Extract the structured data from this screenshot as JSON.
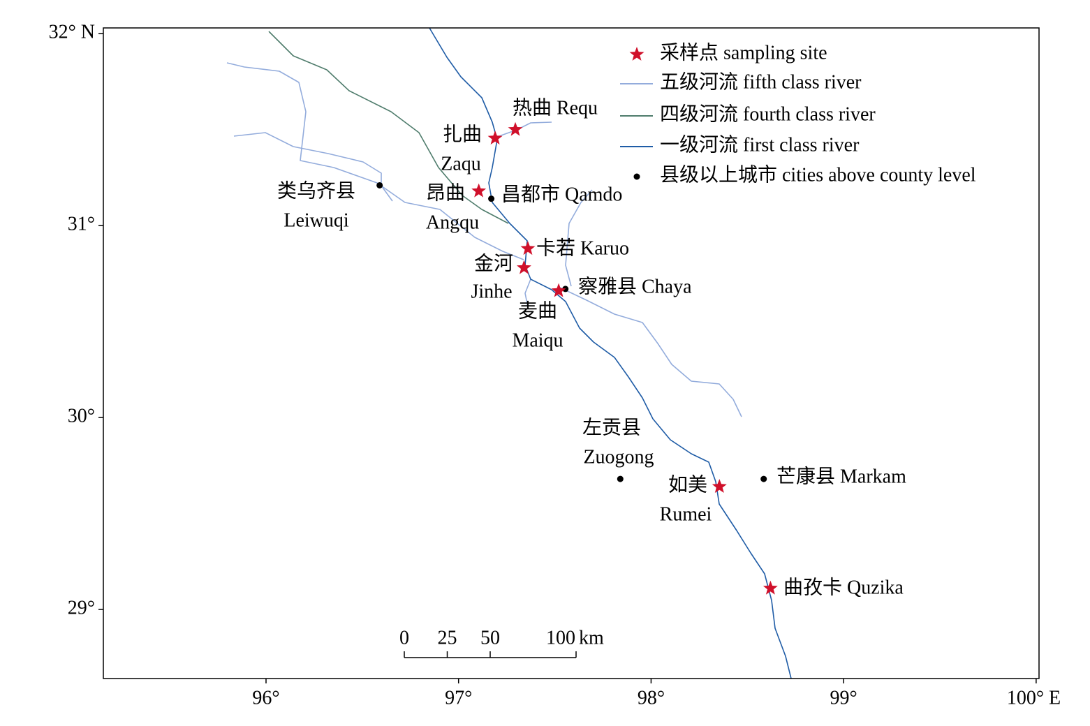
{
  "map": {
    "xlim": [
      95.155,
      100.015
    ],
    "ylim": [
      28.64,
      32.03
    ],
    "xticks": [
      {
        "value": 96,
        "label": "96°"
      },
      {
        "value": 97,
        "label": "97°"
      },
      {
        "value": 98,
        "label": "98°"
      },
      {
        "value": 99,
        "label": "99°"
      },
      {
        "value": 100,
        "label": "100° E"
      }
    ],
    "yticks": [
      {
        "value": 29,
        "label": "29°"
      },
      {
        "value": 30,
        "label": "30°"
      },
      {
        "value": 31,
        "label": "31°"
      },
      {
        "value": 32,
        "label": "32° N"
      }
    ],
    "legend": [
      {
        "label": "采样点 sampling site",
        "color": "#d0102a",
        "kind": "star"
      },
      {
        "label": "五级河流 fifth class river",
        "color": "#93acdc",
        "kind": "line"
      },
      {
        "label": "四级河流 fourth class river",
        "color": "#4f7c6c",
        "kind": "line"
      },
      {
        "label": "一级河流 first class river",
        "color": "#1f5ca6",
        "kind": "line"
      },
      {
        "label": "县级以上城市 cities above county level",
        "color": "#000000",
        "kind": "dot"
      }
    ],
    "sites": [
      {
        "label": [
          "热曲 Requ"
        ],
        "lon": 97.295,
        "lat": 31.5
      },
      {
        "label": [
          "扎曲",
          "Zaqu"
        ],
        "lon": 97.19,
        "lat": 31.455
      },
      {
        "label": [
          "昂曲",
          "Angqu"
        ],
        "lon": 97.105,
        "lat": 31.18
      },
      {
        "label": [
          "卡若 Karuo"
        ],
        "lon": 97.36,
        "lat": 30.88
      },
      {
        "label": [
          "金河",
          "Jinhe"
        ],
        "lon": 97.34,
        "lat": 30.78
      },
      {
        "label": [
          "麦曲",
          "Maiqu"
        ],
        "lon": 97.52,
        "lat": 30.66
      },
      {
        "label": [
          "如美",
          "Rumei"
        ],
        "lon": 98.355,
        "lat": 29.64
      },
      {
        "label": [
          "曲孜卡 Quzika"
        ],
        "lon": 98.62,
        "lat": 29.11
      }
    ],
    "cities": [
      {
        "label": [
          "类乌齐县",
          "Leiwuqi"
        ],
        "lon": 96.59,
        "lat": 31.21
      },
      {
        "label": [
          "昌都市 Qamdo"
        ],
        "lon": 97.17,
        "lat": 31.14
      },
      {
        "label": [
          "察雅县 Chaya"
        ],
        "lon": 97.555,
        "lat": 30.67
      },
      {
        "label": [
          "左贡县",
          "Zuogong"
        ],
        "lon": 97.84,
        "lat": 29.68
      },
      {
        "label": [
          "芒康县 Markam"
        ],
        "lon": 98.585,
        "lat": 29.68
      }
    ],
    "scale_bar": {
      "ticks": [
        0,
        25,
        50,
        100
      ],
      "unit": "km"
    }
  }
}
